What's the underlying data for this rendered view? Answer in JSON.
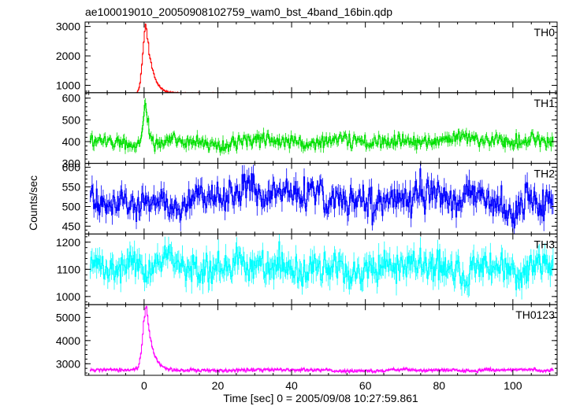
{
  "chart_data": {
    "type": "line",
    "title": "ae100019010_20050908102759_wam0_bst_4band_16bin.qdp",
    "xlabel": "Time [sec] 0 = 2005/09/08 10:27:59.861",
    "ylabel": "Counts/sec",
    "xlim": [
      -16,
      112
    ],
    "x_ticks": [
      0,
      20,
      40,
      60,
      80,
      100
    ],
    "grid": false,
    "time_bin": 0.25,
    "panels": [
      {
        "name": "TH0",
        "color": "#ff0000",
        "ylim": [
          750,
          3150
        ],
        "y_ticks": [
          1000,
          2000,
          3000
        ],
        "baseline": 700,
        "noise": 14,
        "error": 40,
        "peak": {
          "t": 0.6,
          "height": 2350,
          "rise": 0.9,
          "decay": 1.6
        }
      },
      {
        "name": "TH1",
        "color": "#00e000",
        "ylim": [
          300,
          625
        ],
        "y_ticks": [
          300,
          400,
          500,
          600
        ],
        "baseline": 398,
        "noise": 22,
        "error": 18,
        "peak": {
          "t": 0.5,
          "height": 170,
          "rise": 0.5,
          "decay": 0.8
        }
      },
      {
        "name": "TH2",
        "color": "#0000ff",
        "ylim": [
          430,
          610
        ],
        "y_ticks": [
          450,
          500,
          550,
          600
        ],
        "baseline": 515,
        "noise": 28,
        "error": 20,
        "peak": null
      },
      {
        "name": "TH3",
        "color": "#00ffff",
        "ylim": [
          970,
          1230
        ],
        "y_ticks": [
          1000,
          1100,
          1200
        ],
        "baseline": 1105,
        "noise": 42,
        "error": 32,
        "peak": null
      },
      {
        "name": "TH0123",
        "color": "#ff00ff",
        "ylim": [
          2500,
          5550
        ],
        "y_ticks": [
          3000,
          4000,
          5000
        ],
        "baseline": 2720,
        "noise": 45,
        "error": 55,
        "peak": {
          "t": 0.6,
          "height": 2750,
          "rise": 0.9,
          "decay": 1.6
        }
      }
    ]
  }
}
